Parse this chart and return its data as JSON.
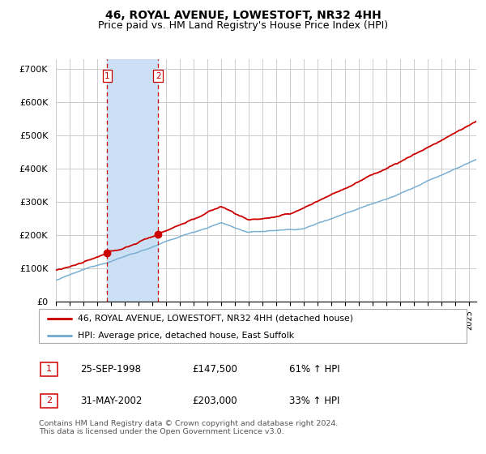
{
  "title": "46, ROYAL AVENUE, LOWESTOFT, NR32 4HH",
  "subtitle": "Price paid vs. HM Land Registry's House Price Index (HPI)",
  "ylim": [
    0,
    730000
  ],
  "yticks": [
    0,
    100000,
    200000,
    300000,
    400000,
    500000,
    600000,
    700000
  ],
  "ytick_labels": [
    "£0",
    "£100K",
    "£200K",
    "£300K",
    "£400K",
    "£500K",
    "£600K",
    "£700K"
  ],
  "xlim_start": 1995.0,
  "xlim_end": 2025.5,
  "background_color": "#ffffff",
  "plot_bg_color": "#ffffff",
  "grid_color": "#cccccc",
  "sale1_date": 1998.73,
  "sale1_price": 147500,
  "sale1_label": "1",
  "sale2_date": 2002.41,
  "sale2_price": 203000,
  "sale2_label": "2",
  "shade_color": "#cce0f5",
  "vline_color": "#cc0000",
  "red_line_color": "#cc0000",
  "blue_line_color": "#7aafd4",
  "legend_line1": "46, ROYAL AVENUE, LOWESTOFT, NR32 4HH (detached house)",
  "legend_line2": "HPI: Average price, detached house, East Suffolk",
  "table_row1": [
    "1",
    "25-SEP-1998",
    "£147,500",
    "61% ↑ HPI"
  ],
  "table_row2": [
    "2",
    "31-MAY-2002",
    "£203,000",
    "33% ↑ HPI"
  ],
  "footer": "Contains HM Land Registry data © Crown copyright and database right 2024.\nThis data is licensed under the Open Government Licence v3.0.",
  "title_fontsize": 10,
  "subtitle_fontsize": 9
}
